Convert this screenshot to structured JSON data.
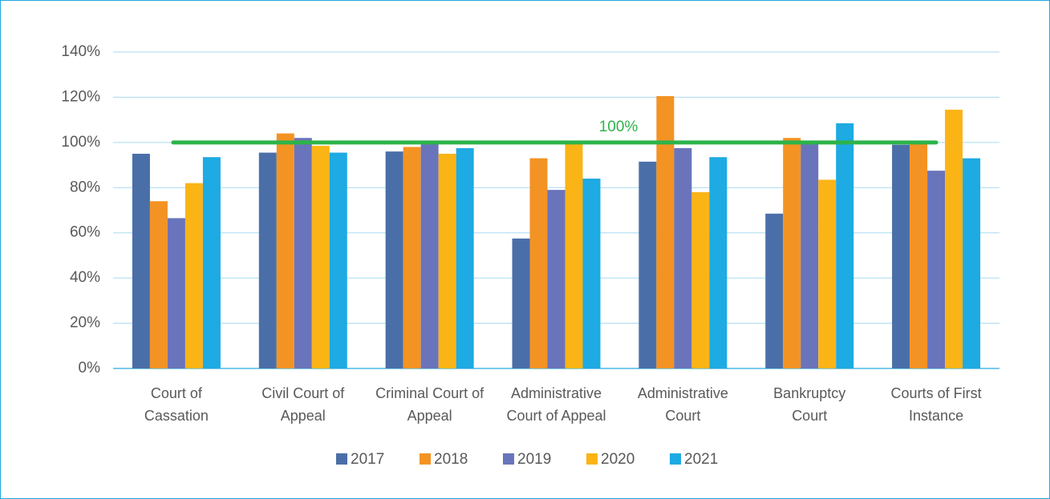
{
  "chart_data": {
    "type": "bar",
    "categories": [
      "Court of Cassation",
      "Civil Court of Appeal",
      "Criminal Court of Appeal",
      "Administrative Court of Appeal",
      "Administrative Court",
      "Bankruptcy Court",
      "Courts of First Instance"
    ],
    "series": [
      {
        "name": "2017",
        "color": "#4a6fa8",
        "values": [
          95,
          95.5,
          96,
          57.5,
          91.5,
          68.5,
          99
        ]
      },
      {
        "name": "2018",
        "color": "#f39324",
        "values": [
          74,
          104,
          98,
          93,
          120.5,
          102,
          100
        ]
      },
      {
        "name": "2019",
        "color": "#6a74bb",
        "values": [
          66.5,
          102,
          100,
          79,
          97.5,
          100,
          87.5
        ]
      },
      {
        "name": "2020",
        "color": "#fbb416",
        "values": [
          82,
          98.5,
          95,
          100,
          78,
          83.5,
          114.5
        ]
      },
      {
        "name": "2021",
        "color": "#1eaae2",
        "values": [
          93.5,
          95.5,
          97.5,
          84,
          93.5,
          108.5,
          93
        ]
      }
    ],
    "ylim": [
      0,
      140
    ],
    "yticks": [
      {
        "value": 0,
        "label": "0%"
      },
      {
        "value": 20,
        "label": "20%"
      },
      {
        "value": 40,
        "label": "40%"
      },
      {
        "value": 60,
        "label": "60%"
      },
      {
        "value": 80,
        "label": "80%"
      },
      {
        "value": 100,
        "label": "100%"
      },
      {
        "value": 120,
        "label": "120%"
      },
      {
        "value": 140,
        "label": "140%"
      }
    ],
    "grid": true,
    "legend": "bottom",
    "reference_line": {
      "value": 100,
      "label": "100%",
      "color": "#2db34a"
    }
  }
}
